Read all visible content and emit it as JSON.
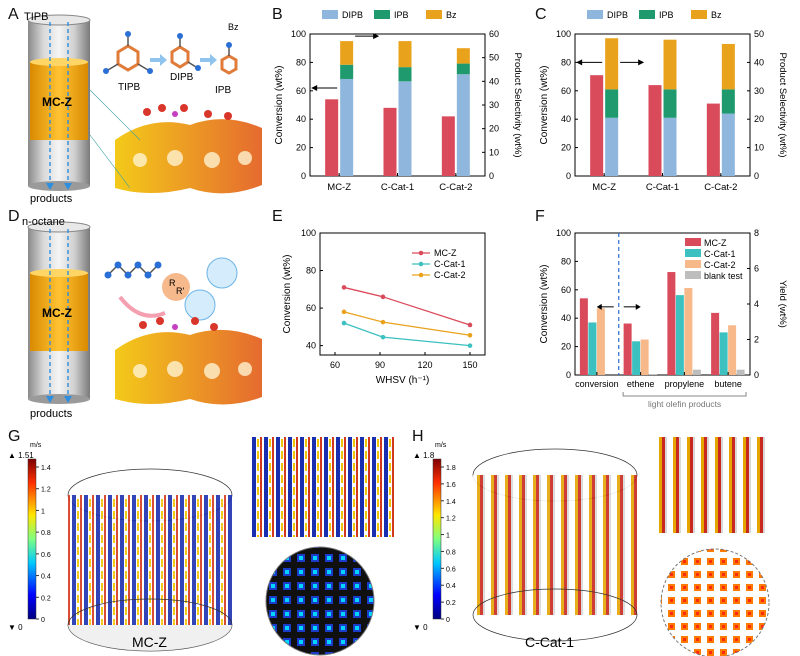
{
  "panels": {
    "A": {
      "letter": "A",
      "top_label": "TIPB",
      "bottom_label": "products",
      "core_label": "MC-Z",
      "molecules": [
        "TIPB",
        "DIPB",
        "IPB",
        "Bz"
      ]
    },
    "B": {
      "letter": "B"
    },
    "C": {
      "letter": "C"
    },
    "D": {
      "letter": "D",
      "top_label": "n-octane",
      "bottom_label": "products",
      "core_label": "MC-Z",
      "site_label": "R",
      "site_label2": "R'"
    },
    "E": {
      "letter": "E"
    },
    "F": {
      "letter": "F",
      "group_caption": "light olefin products"
    },
    "G": {
      "letter": "G",
      "caption": "MC-Z",
      "unit": "m/s",
      "max_label": "▲ 1.51",
      "min_label": "▼ 0",
      "scale_ticks": [
        "1.4",
        "1.2",
        "1",
        "0.8",
        "0.6",
        "0.4",
        "0.2",
        "0"
      ]
    },
    "H": {
      "letter": "H",
      "caption": "C-Cat-1",
      "unit": "m/s",
      "max_label": "▲ 1.8",
      "min_label": "▼ 0",
      "scale_ticks": [
        "1.8",
        "1.6",
        "1.4",
        "1.2",
        "1",
        "0.8",
        "0.6",
        "0.4",
        "0.2",
        "0"
      ]
    }
  },
  "colors": {
    "red": "#d94a5a",
    "blue": "#8fb6dc",
    "green": "#1f9a6e",
    "orange": "#e9a21b",
    "teal": "#3cc0c0",
    "peach": "#f8b98a",
    "grey": "#bdbdbd"
  },
  "chart_data": [
    {
      "id": "B",
      "type": "bar",
      "categories": [
        "MC-Z",
        "C-Cat-1",
        "C-Cat-2"
      ],
      "ylabel": "Conversion (wt%)",
      "y2label": "Product Selectivity (wt%)",
      "ylim": [
        0,
        100
      ],
      "y2lim": [
        0,
        60
      ],
      "yticks": [
        "0",
        "20",
        "40",
        "60",
        "80",
        "100"
      ],
      "y2ticks": [
        "0",
        "10",
        "20",
        "30",
        "40",
        "50",
        "60"
      ],
      "legend": [
        "DIPB",
        "IPB",
        "Bz"
      ],
      "conversion": [
        54,
        48,
        42
      ],
      "stacked": [
        {
          "name": "DIPB",
          "values": [
            41,
            40,
            43
          ]
        },
        {
          "name": "IPB",
          "values": [
            6,
            6,
            4.5
          ]
        },
        {
          "name": "Bz",
          "values": [
            10,
            11,
            6.5
          ]
        }
      ]
    },
    {
      "id": "C",
      "type": "bar",
      "categories": [
        "MC-Z",
        "C-Cat-1",
        "C-Cat-2"
      ],
      "ylabel": "Conversion (wt%)",
      "y2label": "Product Selectivity (wt%)",
      "ylim": [
        0,
        100
      ],
      "y2lim": [
        0,
        50
      ],
      "yticks": [
        "0",
        "20",
        "40",
        "60",
        "80",
        "100"
      ],
      "y2ticks": [
        "0",
        "10",
        "20",
        "30",
        "40",
        "50"
      ],
      "legend": [
        "DIPB",
        "IPB",
        "Bz"
      ],
      "conversion": [
        71,
        64,
        51
      ],
      "stacked": [
        {
          "name": "DIPB",
          "values": [
            20.5,
            20.5,
            22
          ]
        },
        {
          "name": "IPB",
          "values": [
            10,
            10,
            8.5
          ]
        },
        {
          "name": "Bz",
          "values": [
            18,
            17.5,
            16
          ]
        }
      ]
    },
    {
      "id": "E",
      "type": "line",
      "x": [
        66,
        92,
        150
      ],
      "xlabel": "WHSV (h⁻¹)",
      "ylabel": "Conversion (wt%)",
      "xlim": [
        50,
        160
      ],
      "ylim": [
        35,
        100
      ],
      "xticks": [
        "60",
        "90",
        "120",
        "150"
      ],
      "yticks": [
        "40",
        "60",
        "80",
        "100"
      ],
      "series": [
        {
          "name": "MC-Z",
          "values": [
            71,
            66,
            51
          ]
        },
        {
          "name": "C-Cat-1",
          "values": [
            52,
            44.5,
            40
          ]
        },
        {
          "name": "C-Cat-2",
          "values": [
            58,
            52.5,
            45.5
          ]
        }
      ]
    },
    {
      "id": "F",
      "type": "bar",
      "categories": [
        "conversion",
        "ethene",
        "propylene",
        "butene"
      ],
      "ylabel": "Conversion (wt%)",
      "y2label": "Yield (wt%)",
      "ylim": [
        0,
        100
      ],
      "y2lim": [
        0,
        8
      ],
      "yticks": [
        "0",
        "20",
        "40",
        "60",
        "80",
        "100"
      ],
      "y2ticks": [
        "0",
        "2",
        "4",
        "6",
        "8"
      ],
      "series": [
        {
          "name": "MC-Z",
          "values": [
            54,
            2.9,
            5.8,
            3.5
          ]
        },
        {
          "name": "C-Cat-1",
          "values": [
            37,
            1.9,
            4.5,
            2.4
          ]
        },
        {
          "name": "C-Cat-2",
          "values": [
            47,
            2.0,
            4.9,
            2.8
          ]
        },
        {
          "name": "blank test",
          "values": [
            null,
            0.05,
            0.3,
            0.3
          ]
        }
      ]
    }
  ]
}
